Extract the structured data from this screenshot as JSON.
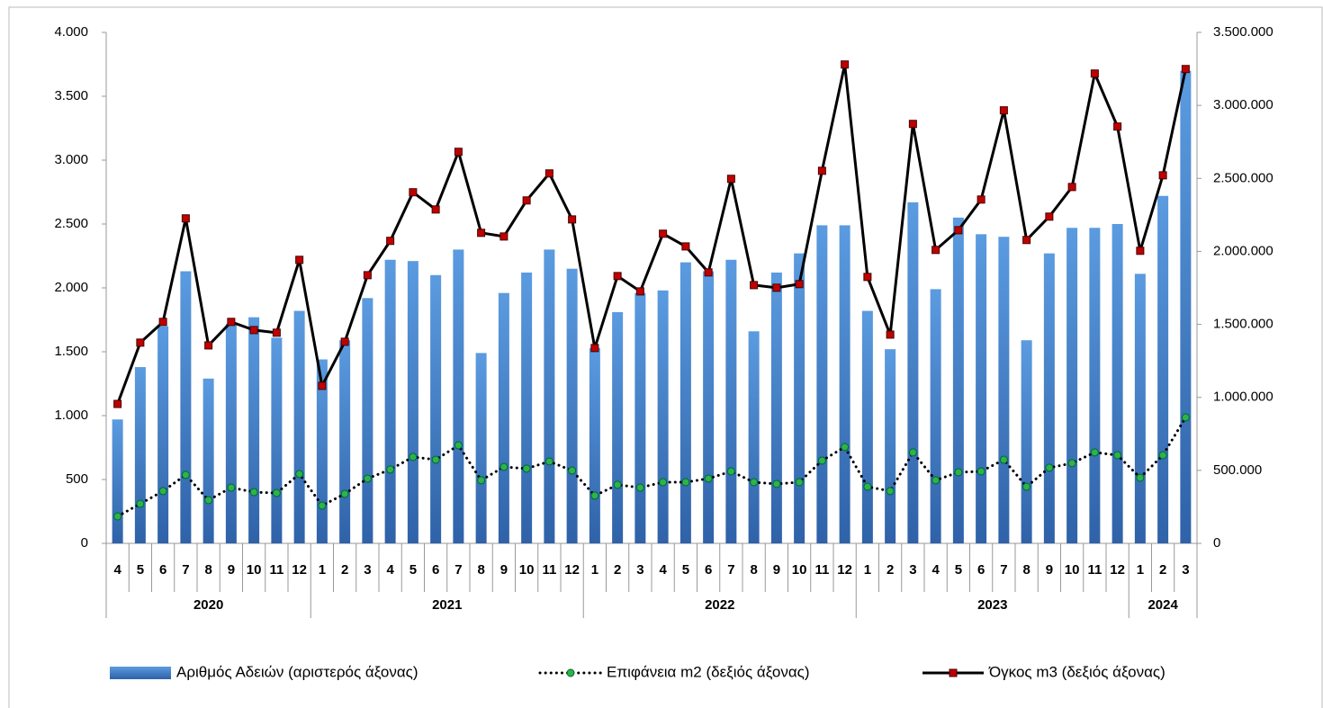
{
  "chart_data": {
    "type": "combo",
    "groups": [
      {
        "name": "2020",
        "categories": [
          "4",
          "5",
          "6",
          "7",
          "8",
          "9",
          "10",
          "11",
          "12"
        ]
      },
      {
        "name": "2021",
        "categories": [
          "1",
          "2",
          "3",
          "4",
          "5",
          "6",
          "7",
          "8",
          "9",
          "10",
          "11",
          "12"
        ]
      },
      {
        "name": "2022",
        "categories": [
          "1",
          "2",
          "3",
          "4",
          "5",
          "6",
          "7",
          "8",
          "9",
          "10",
          "11",
          "12"
        ]
      },
      {
        "name": "2023",
        "categories": [
          "1",
          "2",
          "3",
          "4",
          "5",
          "6",
          "7",
          "8",
          "9",
          "10",
          "11",
          "12"
        ]
      },
      {
        "name": "2024",
        "categories": [
          "1",
          "2",
          "3"
        ]
      }
    ],
    "series": [
      {
        "name": "Αριθμός Αδειών (αριστερός άξονας)",
        "type": "bar",
        "color": "#3f7bc8",
        "values": [
          970,
          1380,
          1700,
          2130,
          1290,
          1720,
          1770,
          1610,
          1820,
          1440,
          1590,
          1920,
          2220,
          2210,
          2100,
          2300,
          1490,
          1960,
          2120,
          2300,
          2150,
          1530,
          1810,
          1960,
          1980,
          2200,
          2130,
          2220,
          1660,
          2120,
          2270,
          2490,
          2490,
          1820,
          1520,
          2670,
          1990,
          2550,
          2420,
          2400,
          1590,
          2270,
          2470,
          2470,
          2500,
          2110,
          2720,
          3700
        ]
      },
      {
        "name": "Επιφάνεια m2 (δεξιός άξονας)",
        "type": "line",
        "axis": "y2",
        "color": "#000000",
        "line_style": "dotted",
        "marker": "circle",
        "marker_color": "#2db34a",
        "values": [
          185000,
          271000,
          358000,
          469000,
          296000,
          382000,
          351000,
          345000,
          475000,
          259000,
          339000,
          444000,
          506000,
          592000,
          573000,
          672000,
          432000,
          524000,
          512000,
          561000,
          499000,
          327000,
          401000,
          382000,
          419000,
          419000,
          444000,
          493000,
          419000,
          407000,
          419000,
          567000,
          660000,
          388000,
          358000,
          623000,
          432000,
          487000,
          493000,
          573000,
          388000,
          518000,
          549000,
          623000,
          604000,
          450000,
          604000,
          863000
        ]
      },
      {
        "name": "Όγκος m3 (δεξιός άξονας)",
        "type": "line",
        "axis": "y2",
        "color": "#000000",
        "line_style": "solid",
        "marker": "square",
        "marker_color": "#c00000",
        "values": [
          955000,
          1375000,
          1517000,
          2226000,
          1356000,
          1517000,
          1461000,
          1443000,
          1942000,
          1079000,
          1381000,
          1837000,
          2072000,
          2405000,
          2287000,
          2682000,
          2127000,
          2102000,
          2349000,
          2534000,
          2219000,
          1338000,
          1831000,
          1726000,
          2121000,
          2034000,
          1856000,
          2497000,
          1769000,
          1751000,
          1776000,
          2552000,
          3280000,
          1825000,
          1430000,
          2873000,
          2010000,
          2145000,
          2355000,
          2966000,
          2078000,
          2238000,
          2441000,
          3218000,
          2855000,
          2004000,
          2521000,
          3249000
        ]
      }
    ],
    "ylim": [
      0,
      4000
    ],
    "yticks": [
      0,
      {
        "value": 500,
        "label": "500"
      },
      {
        "value": 1000,
        "label": "1.000"
      },
      {
        "value": 1500,
        "label": "1.500"
      },
      {
        "value": 2000,
        "label": "2.000"
      },
      {
        "value": 2500,
        "label": "2.500"
      },
      {
        "value": 3000,
        "label": "3.000"
      },
      {
        "value": 3500,
        "label": "3.500"
      },
      {
        "value": 4000,
        "label": "4.000"
      }
    ],
    "y2lim": [
      0,
      3500000
    ],
    "y2ticks": [
      0,
      {
        "value": 500000,
        "label": "500.000"
      },
      {
        "value": 1000000,
        "label": "1.000.000"
      },
      {
        "value": 1500000,
        "label": "1.500.000"
      },
      {
        "value": 2000000,
        "label": "2.000.000"
      },
      {
        "value": 2500000,
        "label": "2.500.000"
      },
      {
        "value": 3000000,
        "label": "3.000.000"
      },
      {
        "value": 3500000,
        "label": "3.500.000"
      }
    ],
    "grid": false,
    "legend": "bottom"
  }
}
